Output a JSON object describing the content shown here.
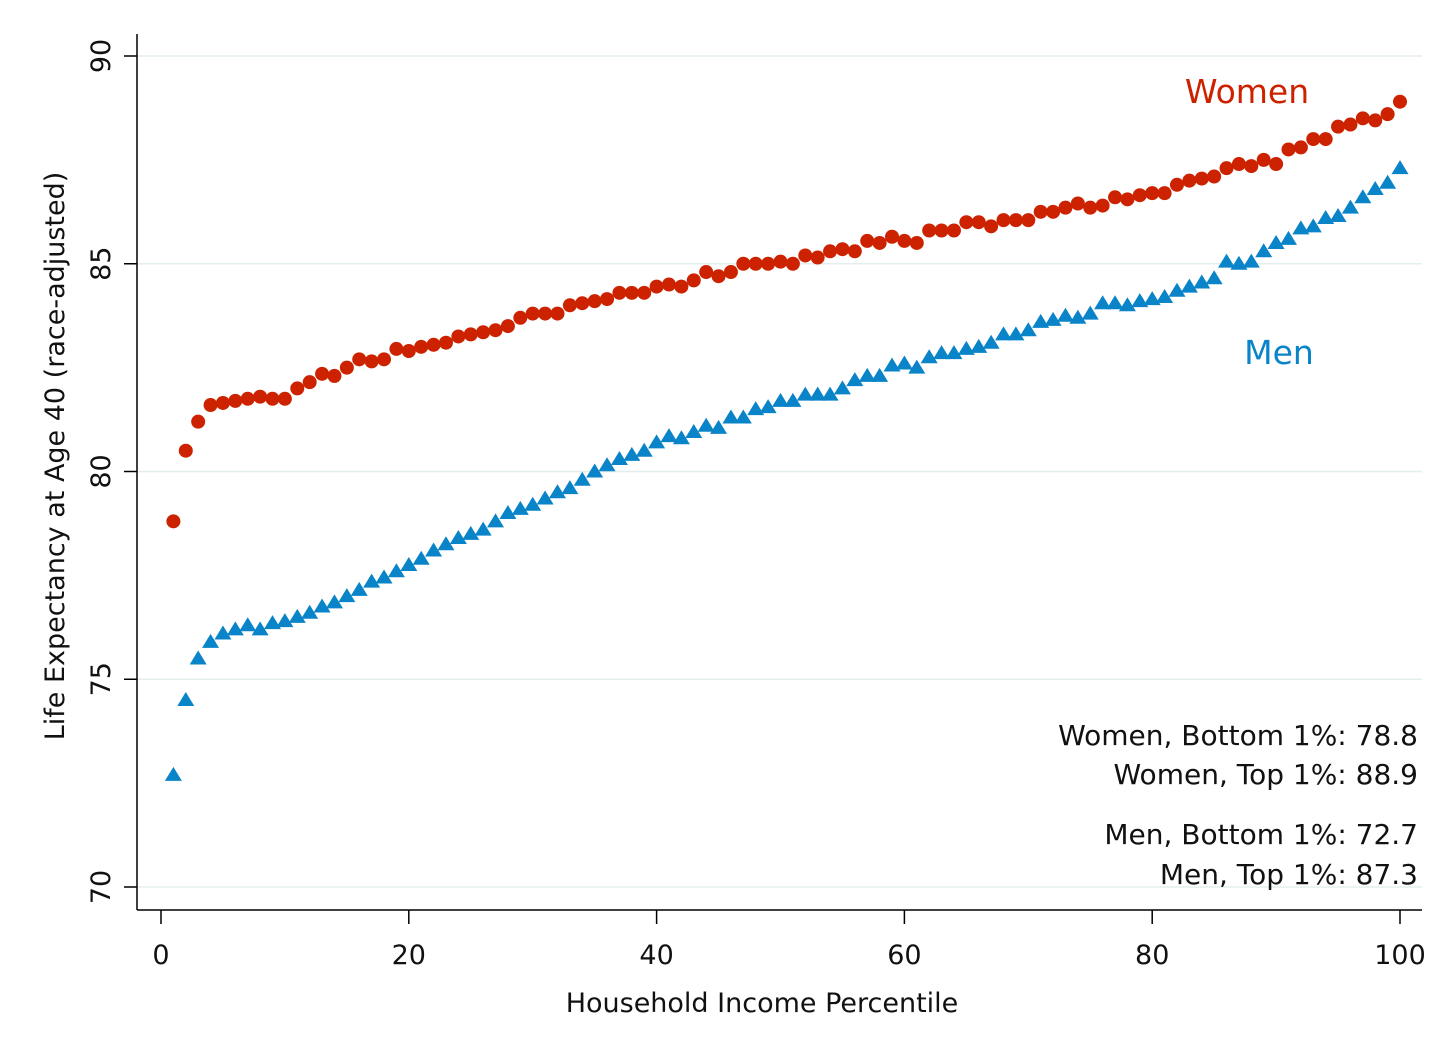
{
  "chart_data": {
    "type": "scatter",
    "title": "",
    "xlabel": "Household Income Percentile",
    "ylabel": "Life Expectancy at Age 40 (race-adjusted)",
    "xlim": [
      0,
      100
    ],
    "ylim": [
      70,
      90
    ],
    "x_ticks": [
      "0",
      "20",
      "40",
      "60",
      "80",
      "100"
    ],
    "y_ticks": [
      "70",
      "75",
      "80",
      "85",
      "90"
    ],
    "grid": true,
    "x": [
      1,
      2,
      3,
      4,
      5,
      6,
      7,
      8,
      9,
      10,
      11,
      12,
      13,
      14,
      15,
      16,
      17,
      18,
      19,
      20,
      21,
      22,
      23,
      24,
      25,
      26,
      27,
      28,
      29,
      30,
      31,
      32,
      33,
      34,
      35,
      36,
      37,
      38,
      39,
      40,
      41,
      42,
      43,
      44,
      45,
      46,
      47,
      48,
      49,
      50,
      51,
      52,
      53,
      54,
      55,
      56,
      57,
      58,
      59,
      60,
      61,
      62,
      63,
      64,
      65,
      66,
      67,
      68,
      69,
      70,
      71,
      72,
      73,
      74,
      75,
      76,
      77,
      78,
      79,
      80,
      81,
      82,
      83,
      84,
      85,
      86,
      87,
      88,
      89,
      90,
      91,
      92,
      93,
      94,
      95,
      96,
      97,
      98,
      99,
      100
    ],
    "series": [
      {
        "name": "Women",
        "color": "#cc2200",
        "marker": "circle",
        "values": [
          78.8,
          80.5,
          81.2,
          81.6,
          81.65,
          81.7,
          81.75,
          81.8,
          81.75,
          81.75,
          82.0,
          82.15,
          82.35,
          82.3,
          82.5,
          82.7,
          82.65,
          82.7,
          82.95,
          82.9,
          83.0,
          83.05,
          83.1,
          83.25,
          83.3,
          83.35,
          83.4,
          83.5,
          83.7,
          83.8,
          83.8,
          83.8,
          84.0,
          84.05,
          84.1,
          84.15,
          84.3,
          84.3,
          84.3,
          84.45,
          84.5,
          84.45,
          84.6,
          84.8,
          84.7,
          84.8,
          85.0,
          85.0,
          85.0,
          85.05,
          85.0,
          85.2,
          85.15,
          85.3,
          85.35,
          85.3,
          85.55,
          85.5,
          85.65,
          85.55,
          85.5,
          85.8,
          85.8,
          85.8,
          86.0,
          86.0,
          85.9,
          86.05,
          86.05,
          86.05,
          86.25,
          86.25,
          86.35,
          86.45,
          86.35,
          86.4,
          86.6,
          86.55,
          86.65,
          86.7,
          86.7,
          86.9,
          87.0,
          87.05,
          87.1,
          87.3,
          87.4,
          87.35,
          87.5,
          87.4,
          87.75,
          87.8,
          88.0,
          88.0,
          88.3,
          88.35,
          88.5,
          88.45,
          88.6,
          88.9
        ]
      },
      {
        "name": "Men",
        "color": "#0a84c8",
        "marker": "triangle",
        "values": [
          72.7,
          74.5,
          75.5,
          75.9,
          76.1,
          76.2,
          76.3,
          76.2,
          76.35,
          76.4,
          76.5,
          76.6,
          76.75,
          76.85,
          77.0,
          77.15,
          77.35,
          77.45,
          77.6,
          77.75,
          77.9,
          78.1,
          78.25,
          78.4,
          78.5,
          78.6,
          78.8,
          79.0,
          79.1,
          79.2,
          79.35,
          79.5,
          79.6,
          79.8,
          80.0,
          80.15,
          80.3,
          80.4,
          80.5,
          80.7,
          80.85,
          80.8,
          80.95,
          81.1,
          81.05,
          81.3,
          81.3,
          81.5,
          81.55,
          81.7,
          81.7,
          81.85,
          81.85,
          81.85,
          82.0,
          82.2,
          82.3,
          82.3,
          82.55,
          82.6,
          82.5,
          82.75,
          82.85,
          82.85,
          82.95,
          83.0,
          83.1,
          83.3,
          83.3,
          83.4,
          83.6,
          83.65,
          83.75,
          83.7,
          83.8,
          84.05,
          84.05,
          84.0,
          84.1,
          84.15,
          84.2,
          84.35,
          84.45,
          84.55,
          84.65,
          85.05,
          85.0,
          85.05,
          85.3,
          85.5,
          85.6,
          85.85,
          85.9,
          86.1,
          86.15,
          86.35,
          86.6,
          86.8,
          86.95,
          87.3
        ]
      }
    ],
    "series_labels": {
      "women": "Women",
      "men": "Men"
    },
    "annotations": [
      "Women, Bottom 1%: 78.8",
      "Women, Top 1%: 88.9",
      "Men, Bottom 1%: 72.7",
      "Men, Top 1%: 87.3"
    ]
  }
}
